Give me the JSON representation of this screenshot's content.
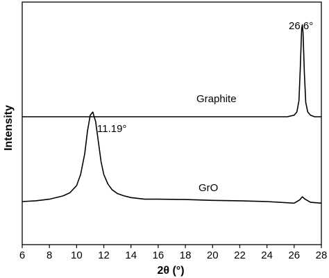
{
  "chart_data": {
    "type": "line",
    "xlabel": "2θ (°)",
    "ylabel": "Intensity",
    "xlim": [
      6,
      28
    ],
    "xticks": [
      "6",
      "8",
      "10",
      "12",
      "14",
      "16",
      "18",
      "20",
      "22",
      "24",
      "26",
      "28"
    ],
    "yticks": [],
    "grid": false,
    "legend": "none",
    "series": [
      {
        "name": "Graphite",
        "x": [
          6,
          10,
          15,
          20,
          24,
          25.5,
          26.0,
          26.2,
          26.35,
          26.45,
          26.55,
          26.6,
          26.65,
          26.75,
          26.85,
          27.0,
          27.2,
          27.5,
          28
        ],
        "y": [
          0,
          0,
          0,
          0,
          0,
          0,
          0.2,
          0.6,
          2.0,
          6.0,
          11.0,
          11.5,
          10.5,
          5.5,
          1.8,
          0.6,
          0.2,
          0,
          0
        ]
      },
      {
        "name": "GrO",
        "x": [
          6,
          7,
          8,
          9,
          9.5,
          10.0,
          10.3,
          10.6,
          10.8,
          11.0,
          11.19,
          11.4,
          11.6,
          11.8,
          12.0,
          12.3,
          12.6,
          13.0,
          13.5,
          14,
          15,
          16,
          18,
          20,
          22,
          24,
          26,
          26.4,
          26.6,
          26.8,
          27.2,
          28
        ],
        "y": [
          0,
          0.1,
          0.3,
          0.7,
          1.1,
          2.0,
          3.4,
          6.0,
          8.8,
          10.8,
          11.2,
          10.0,
          7.5,
          5.0,
          3.4,
          2.2,
          1.5,
          1.0,
          0.7,
          0.5,
          0.3,
          0.3,
          0.25,
          0.15,
          0.1,
          0.0,
          -0.2,
          0.2,
          0.6,
          0.3,
          -0.1,
          -0.2
        ]
      }
    ],
    "annotations": {
      "graphite_peak": "26.6°",
      "gro_peak": "11.19°",
      "graphite_label": "Graphite",
      "gro_label": "GrO"
    }
  }
}
